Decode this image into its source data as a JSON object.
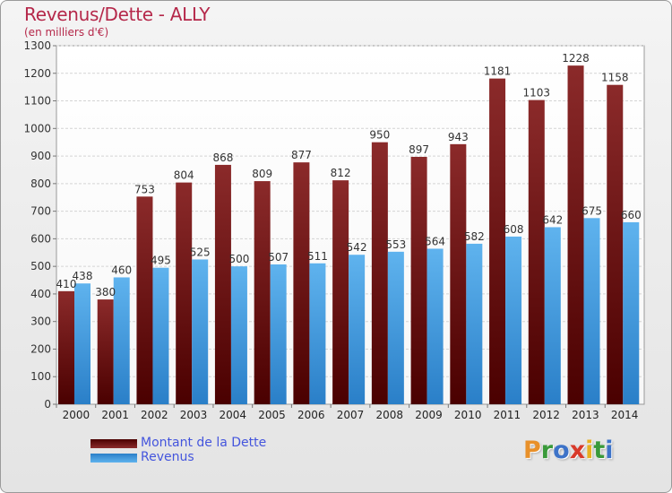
{
  "chart_data": {
    "type": "bar",
    "title": "Revenus/Dette - ALLY",
    "subtitle": "(en milliers d'€)",
    "categories": [
      "2000",
      "2001",
      "2002",
      "2003",
      "2004",
      "2005",
      "2006",
      "2007",
      "2008",
      "2009",
      "2010",
      "2011",
      "2012",
      "2013",
      "2014"
    ],
    "series": [
      {
        "name": "Montant de la Dette",
        "color_top": "#8b2a2a",
        "color_bottom": "#4a0000",
        "values": [
          410,
          380,
          753,
          804,
          868,
          809,
          877,
          812,
          950,
          897,
          943,
          1181,
          1103,
          1228,
          1158
        ]
      },
      {
        "name": "Revenus",
        "color_top": "#5fb3ee",
        "color_bottom": "#2a7fc8",
        "values": [
          438,
          460,
          495,
          525,
          500,
          507,
          511,
          542,
          553,
          564,
          582,
          608,
          642,
          675,
          660
        ]
      }
    ],
    "ylim": [
      0,
      1300
    ],
    "yticks": [
      0,
      100,
      200,
      300,
      400,
      500,
      600,
      700,
      800,
      900,
      1000,
      1100,
      1200,
      1300
    ],
    "grid": true,
    "legend_position": "bottom-left"
  },
  "logo": {
    "letters": [
      {
        "char": "P",
        "color": "#e8902a"
      },
      {
        "char": "r",
        "color": "#3a9a3a"
      },
      {
        "char": "o",
        "color": "#3d73c8"
      },
      {
        "char": "x",
        "color": "#d83a2a"
      },
      {
        "char": "i",
        "color": "#e8b020"
      },
      {
        "char": "t",
        "color": "#3a9a3a"
      },
      {
        "char": "i",
        "color": "#3d73c8"
      }
    ]
  }
}
